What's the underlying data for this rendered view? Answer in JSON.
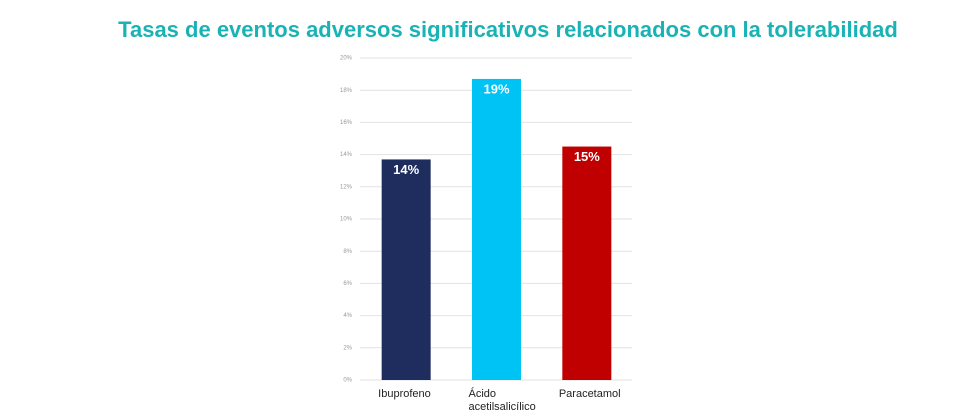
{
  "chart_data": {
    "type": "bar",
    "title": "Tasas de eventos adversos significativos relacionados con la tolerabilidad",
    "categories": [
      "Ibuprofeno",
      "Ácido acetilsalicílico",
      "Paracetamol"
    ],
    "values": [
      13.7,
      18.7,
      14.5
    ],
    "value_labels": [
      "14%",
      "19%",
      "15%"
    ],
    "colors": [
      "#1f2d5e",
      "#00c3f5",
      "#c00000"
    ],
    "ylim": [
      0,
      20
    ],
    "yticks": [
      {
        "value": 0,
        "label": "0%"
      },
      {
        "value": 2,
        "label": "2%"
      },
      {
        "value": 4,
        "label": "4%"
      },
      {
        "value": 6,
        "label": "6%"
      },
      {
        "value": 8,
        "label": "8%"
      },
      {
        "value": 10,
        "label": "10%"
      },
      {
        "value": 12,
        "label": "12%"
      },
      {
        "value": 14,
        "label": "14%"
      },
      {
        "value": 16,
        "label": "16%"
      },
      {
        "value": 18,
        "label": "18%"
      },
      {
        "value": 20,
        "label": "20%"
      }
    ],
    "grid": true
  }
}
